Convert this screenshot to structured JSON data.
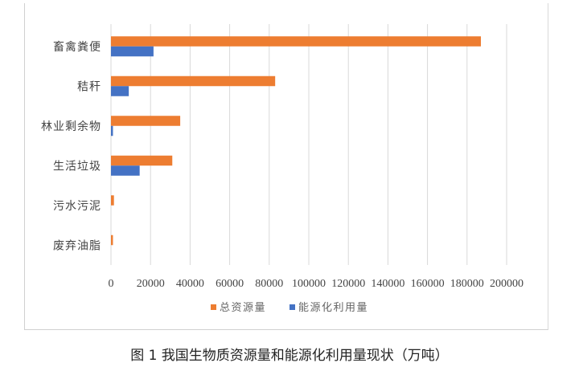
{
  "chart_data": {
    "type": "bar",
    "orientation": "horizontal",
    "categories": [
      "畜禽粪便",
      "秸秆",
      "林业剩余物",
      "生活垃圾",
      "污水污泥",
      "废弃油脂"
    ],
    "series": [
      {
        "name": "总资源量",
        "color": "#ed7d31",
        "values": [
          187000,
          83000,
          35000,
          31000,
          1500,
          1000
        ]
      },
      {
        "name": "能源化利用量",
        "color": "#4472c4",
        "values": [
          21500,
          9000,
          1000,
          14500,
          0,
          0
        ]
      }
    ],
    "xlim": [
      0,
      200000
    ],
    "xticks": [
      "0",
      "20000",
      "40000",
      "60000",
      "80000",
      "100000",
      "120000",
      "140000",
      "160000",
      "180000",
      "200000"
    ],
    "grid": true,
    "legend_position": "bottom",
    "title": "图 1  我国生物质资源量和能源化利用量现状（万吨）"
  }
}
